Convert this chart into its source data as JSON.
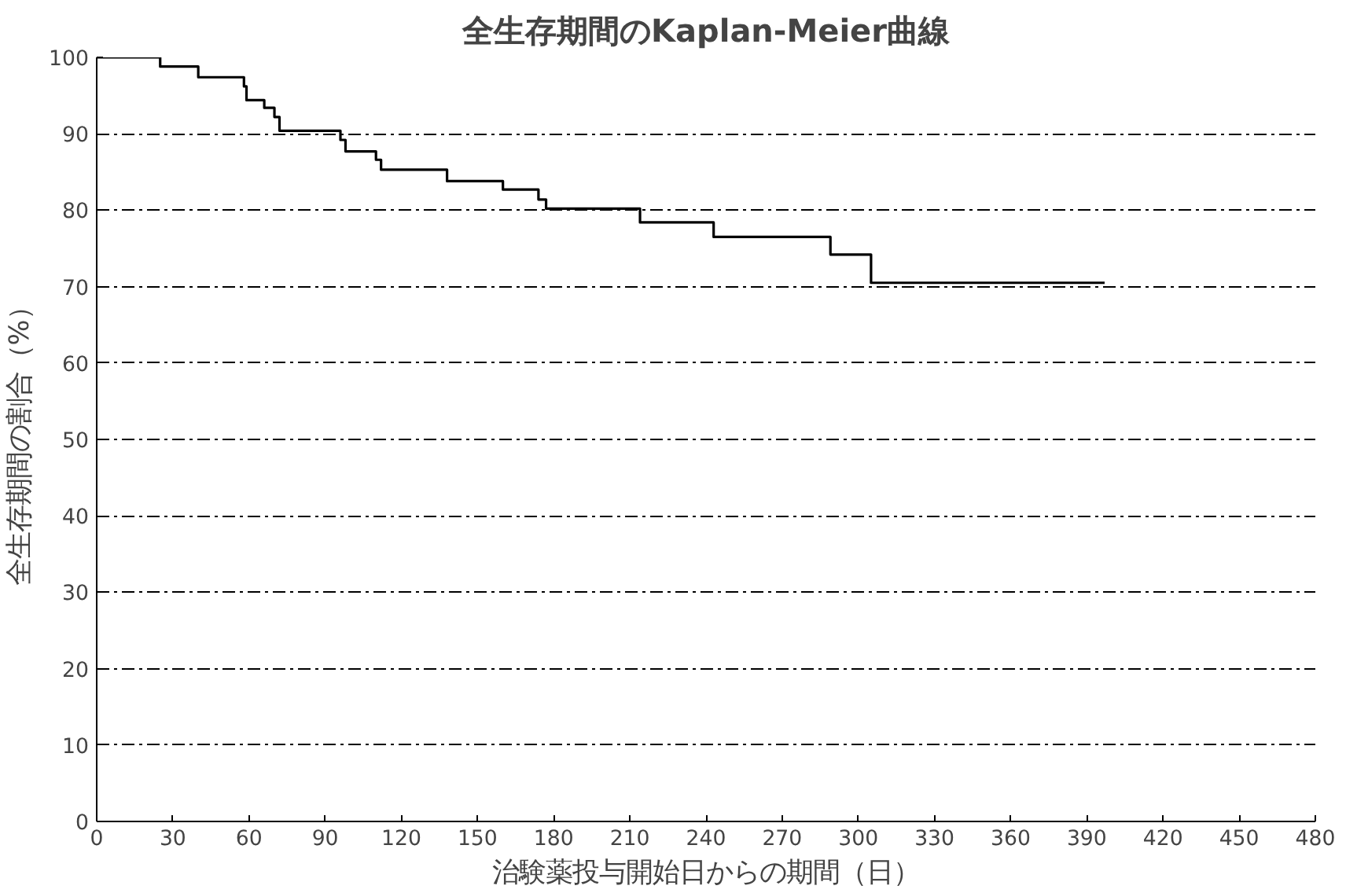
{
  "chart_data": {
    "type": "step",
    "title": "全生存期間のKaplan-Meier曲線",
    "xlabel": "治験薬投与開始日からの期間（日）",
    "ylabel": "全生存期間の割合（%）",
    "x": [
      0,
      25,
      40,
      58,
      59,
      66,
      70,
      72,
      96,
      98,
      110,
      112,
      138,
      160,
      174,
      177,
      214,
      243,
      289,
      305,
      397
    ],
    "series": [
      {
        "color": "#000000",
        "values": [
          100,
          98.8,
          97.4,
          96.2,
          94.4,
          93.4,
          92.2,
          90.4,
          89.2,
          87.7,
          86.6,
          85.3,
          83.8,
          82.7,
          81.4,
          80.2,
          78.4,
          76.5,
          74.2,
          70.5,
          70.5
        ]
      }
    ],
    "xlim": [
      0,
      480
    ],
    "xticks": [
      0,
      30,
      60,
      90,
      120,
      150,
      180,
      210,
      240,
      270,
      300,
      330,
      360,
      390,
      420,
      450,
      480
    ],
    "ylim": [
      0,
      100
    ],
    "yticks": [
      0,
      10,
      20,
      30,
      40,
      50,
      60,
      70,
      80,
      90,
      100
    ],
    "grid": "y",
    "line_style": "solid"
  }
}
